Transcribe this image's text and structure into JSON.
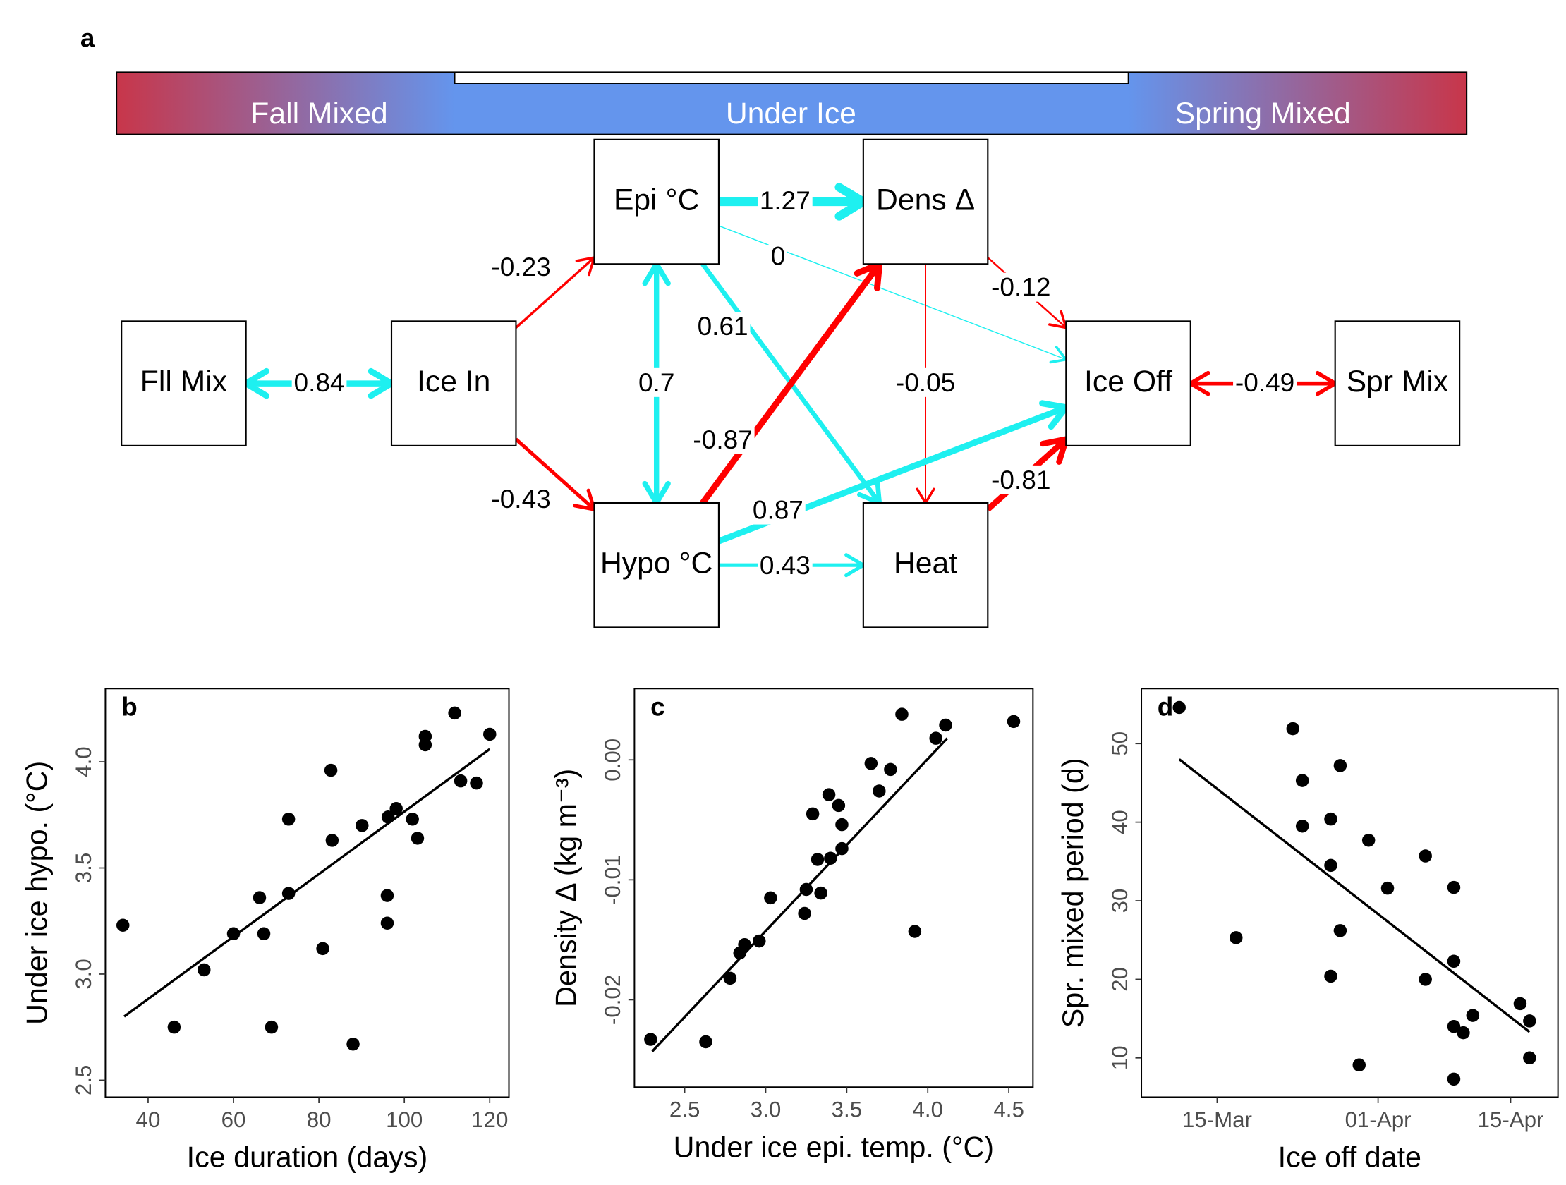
{
  "diagram": {
    "panel_label": "a",
    "phases": [
      "Fall Mixed",
      "Under Ice",
      "Spring Mixed"
    ],
    "nodes": [
      "Fll Mix",
      "Ice In",
      "Epi °C",
      "Dens Δ",
      "Ice Off",
      "Spr Mix",
      "Hypo °C",
      "Heat"
    ],
    "positive_color": "#1ef0f0",
    "negative_color": "#ff0000",
    "edges": [
      {
        "from": 0,
        "to": 1,
        "value": 0.84,
        "both_ways": true
      },
      {
        "from": 1,
        "to": 2,
        "value": -0.23,
        "both_ways": false
      },
      {
        "from": 1,
        "to": 6,
        "value": -0.43,
        "both_ways": false
      },
      {
        "from": 2,
        "to": 3,
        "value": 1.27,
        "both_ways": false
      },
      {
        "from": 2,
        "to": 4,
        "value": 0,
        "both_ways": false
      },
      {
        "from": 2,
        "to": 7,
        "value": 0.61,
        "both_ways": false
      },
      {
        "from": 2,
        "to": 6,
        "value": 0.7,
        "both_ways": true
      },
      {
        "from": 6,
        "to": 3,
        "value": -0.87,
        "both_ways": false
      },
      {
        "from": 3,
        "to": 4,
        "value": -0.12,
        "both_ways": false
      },
      {
        "from": 3,
        "to": 7,
        "value": -0.05,
        "both_ways": false
      },
      {
        "from": 6,
        "to": 4,
        "value": 0.87,
        "both_ways": false
      },
      {
        "from": 7,
        "to": 4,
        "value": -0.81,
        "both_ways": false
      },
      {
        "from": 6,
        "to": 7,
        "value": 0.43,
        "both_ways": false
      },
      {
        "from": 4,
        "to": 5,
        "value": -0.49,
        "both_ways": true
      }
    ]
  },
  "chart_data": [
    {
      "type": "scatter",
      "panel_label": "b",
      "xlabel": "Ice duration (days)",
      "ylabel": "Under ice hypo. (°C)",
      "color": "#000000",
      "x": [
        34.1,
        46.1,
        53.1,
        60.0,
        66.1,
        67.1,
        68.9,
        72.9,
        72.9,
        80.9,
        82.8,
        83.1,
        88.0,
        90.1,
        96.0,
        96.0,
        96.2,
        98.1,
        101.9,
        103.1,
        104.9,
        104.9,
        111.8,
        113.2,
        116.9,
        120.0
      ],
      "y": [
        3.23,
        2.75,
        3.02,
        3.19,
        3.36,
        3.19,
        2.75,
        3.73,
        3.38,
        3.12,
        3.96,
        3.63,
        2.67,
        3.7,
        3.37,
        3.24,
        3.74,
        3.78,
        3.73,
        3.64,
        4.12,
        4.08,
        4.23,
        3.91,
        3.9,
        4.13
      ],
      "trend_line": {
        "x": [
          34.4,
          120
        ],
        "y": [
          2.8,
          4.06
        ]
      },
      "xlim": [
        30,
        124.5
      ],
      "ylim": [
        2.42,
        4.345
      ],
      "xticks": [
        40,
        60,
        80,
        100,
        120
      ],
      "yticks": [
        2.5,
        {
          "value": 3,
          "label": "3.0"
        },
        3.5,
        {
          "value": 4,
          "label": "4.0"
        }
      ]
    },
    {
      "type": "scatter",
      "panel_label": "c",
      "xlabel": "Under ice epi. temp. (°C)",
      "ylabel": "Density Δ (kg m⁻³)",
      "color": "#000000",
      "x": [
        2.29,
        2.63,
        2.78,
        2.84,
        2.87,
        2.96,
        3.03,
        3.24,
        3.25,
        3.29,
        3.32,
        3.34,
        3.39,
        3.4,
        3.45,
        3.47,
        3.47,
        3.65,
        3.7,
        3.77,
        3.84,
        3.92,
        4.05,
        4.11,
        4.53
      ],
      "y": [
        -0.0233,
        -0.0235,
        -0.0182,
        -0.0161,
        -0.0154,
        -0.0151,
        -0.0115,
        -0.0128,
        -0.0108,
        -0.0045,
        -0.0083,
        -0.0111,
        -0.0029,
        -0.0082,
        -0.0038,
        -0.0074,
        -0.0054,
        -0.0003,
        -0.0026,
        -0.0008,
        0.0038,
        -0.0143,
        0.0018,
        0.0029,
        0.0032
      ],
      "trend_line": {
        "x": [
          2.3,
          4.12
        ],
        "y": [
          -0.0243,
          0.0018
        ]
      },
      "xlim": [
        2.19,
        4.649
      ],
      "ylim": [
        -0.02728,
        0.00594
      ],
      "xticks": [
        2.5,
        {
          "value": 3,
          "label": "3.0"
        },
        3.5,
        {
          "value": 4,
          "label": "4.0"
        },
        4.5
      ],
      "yticks": [
        -0.02,
        -0.01,
        {
          "value": 0,
          "label": "0.00"
        }
      ]
    },
    {
      "type": "scatter",
      "panel_label": "d",
      "xlabel": "Ice off date",
      "ylabel": "Spr. mixed period (d)",
      "color": "#000000",
      "x": [
        "03-11",
        "03-17",
        "03-23",
        "03-24",
        "03-24",
        "03-27",
        "03-27",
        "03-27",
        "03-28",
        "03-28",
        "03-30",
        "03-31",
        "04-02",
        "04-06",
        "04-06",
        "04-09",
        "04-09",
        "04-09",
        "04-09",
        "04-10",
        "04-11",
        "04-16",
        "04-17",
        "04-17"
      ],
      "y": [
        54.6,
        25.3,
        51.9,
        45.3,
        39.5,
        40.4,
        34.5,
        20.4,
        47.2,
        26.2,
        9.1,
        37.7,
        31.6,
        35.7,
        20.0,
        31.7,
        22.3,
        14.0,
        7.3,
        13.2,
        15.4,
        16.9,
        14.7,
        10.0
      ],
      "trend_line": {
        "x": [
          "03-11",
          "04-17"
        ],
        "y": [
          48.0,
          13.3
        ]
      },
      "xlim": [
        "03-07",
        "04-20"
      ],
      "ylim": [
        5,
        57
      ],
      "xticks": [
        {
          "value": "03-15",
          "label": "15-Mar"
        },
        {
          "value": "04-01",
          "label": "01-Apr"
        },
        {
          "value": "04-15",
          "label": "15-Apr"
        }
      ],
      "yticks": [
        10,
        20,
        30,
        40,
        50
      ]
    }
  ]
}
